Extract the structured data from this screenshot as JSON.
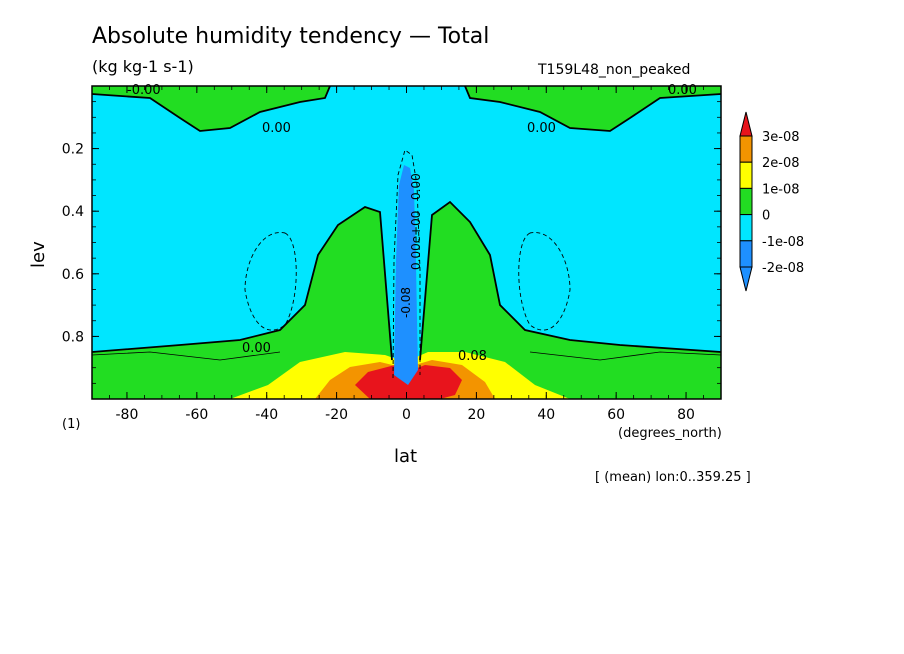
{
  "title": "Absolute humidity tendency — Total",
  "units": "(kg kg-1 s-1)",
  "run_label": "T159L48_non_peaked",
  "xlabel": "lat",
  "ylabel": "lev",
  "x_units": "(degrees_north)",
  "page_number": "(1)",
  "averaging": "[ (mean) lon:0..359.25 ]",
  "chart_data": {
    "type": "heatmap",
    "x_range": [
      -90,
      90
    ],
    "y_range": [
      0.0,
      1.0
    ],
    "y_inverted": true,
    "x_ticks": [
      "-80",
      "-60",
      "-40",
      "-20",
      "0",
      "20",
      "40",
      "60",
      "80"
    ],
    "x_tick_values": [
      -80,
      -60,
      -40,
      -20,
      0,
      20,
      40,
      60,
      80
    ],
    "y_ticks": [
      "0.2",
      "0.4",
      "0.6",
      "0.8"
    ],
    "y_tick_values": [
      0.2,
      0.4,
      0.6,
      0.8
    ],
    "colorbar": {
      "labels": [
        "3e-08",
        "2e-08",
        "1e-08",
        "0",
        "-1e-08",
        "-2e-08"
      ],
      "colors": [
        "#e8141c",
        "#f39400",
        "#ffff00",
        "#22dd22",
        "#00e6ff",
        "#1e90ff",
        "#1e90ff"
      ]
    },
    "contour_labels": [
      "-0.00",
      "0.00",
      "0.00",
      "0.00",
      "0.00",
      "0.00",
      "-0.08",
      "0.08",
      "0.00e+00"
    ],
    "field_regions": [
      {
        "name": "background",
        "value": "-1e-08..0",
        "color": "#00e6ff"
      },
      {
        "name": "lower-troposphere",
        "value": "0..1e-08",
        "color": "#22dd22"
      },
      {
        "name": "stratosphere-top",
        "value": "0..1e-08",
        "color": "#22dd22"
      },
      {
        "name": "subtropical-boundary-layer",
        "value": "1e-08..2e-08",
        "color": "#ffff00"
      },
      {
        "name": "tropical-boundary-layer",
        "value": "2e-08..3e-08",
        "color": "#f39400"
      },
      {
        "name": "equatorial-surface-max",
        "value": ">3e-08",
        "color": "#e8141c"
      },
      {
        "name": "equatorial-updraft-min",
        "value": "<-2e-08",
        "color": "#1e90ff"
      }
    ]
  }
}
